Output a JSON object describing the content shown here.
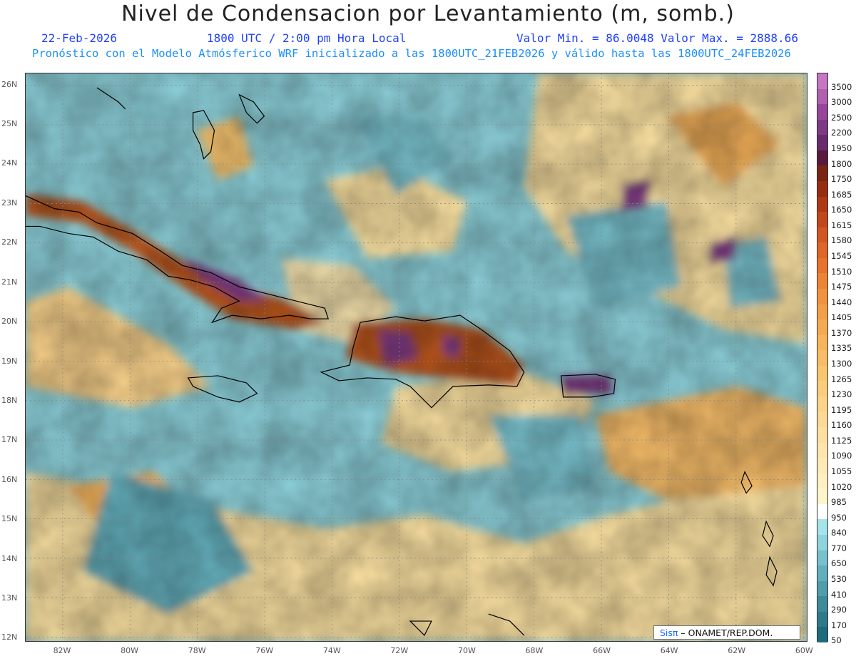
{
  "header": {
    "title": "Nivel de Condensacion por Levantamiento (m, somb.)",
    "date": "22-Feb-2026",
    "time": "1800 UTC / 2:00 pm Hora Local",
    "minmax": "Valor Min. = 86.0048  Valor Max. = 2888.66",
    "forecast": "Pronóstico con el Modelo Atmósferico WRF inicializado a las 1800UTC_21FEB2026 y válido hasta las  1800UTC_24FEB2026"
  },
  "axes": {
    "lat_labels": [
      "26N",
      "25N",
      "24N",
      "23N",
      "22N",
      "21N",
      "20N",
      "19N",
      "18N",
      "17N",
      "16N",
      "15N",
      "14N",
      "13N",
      "12N"
    ],
    "lon_labels": [
      "82W",
      "80W",
      "78W",
      "76W",
      "74W",
      "72W",
      "70W",
      "68W",
      "66W",
      "64W",
      "62W",
      "60W"
    ]
  },
  "legend": {
    "levels": [
      "3500",
      "3000",
      "2500",
      "2200",
      "1950",
      "1800",
      "1750",
      "1685",
      "1650",
      "1615",
      "1580",
      "1545",
      "1510",
      "1475",
      "1440",
      "1405",
      "1370",
      "1335",
      "1300",
      "1265",
      "1230",
      "1195",
      "1160",
      "1125",
      "1090",
      "1055",
      "1020",
      "985",
      "950",
      "840",
      "770",
      "650",
      "530",
      "410",
      "290",
      "170",
      "50"
    ],
    "colors": [
      "#c776c4",
      "#b060ae",
      "#97479a",
      "#7e3a82",
      "#6a2b6e",
      "#5a1a3e",
      "#7a2414",
      "#962d10",
      "#ad3914",
      "#c2481c",
      "#d45622",
      "#e06528",
      "#e8722e",
      "#ec8436",
      "#f0923e",
      "#f39f48",
      "#f5aa52",
      "#f7b45c",
      "#f8bd66",
      "#f9c670",
      "#facd7c",
      "#fbd489",
      "#fcda95",
      "#fde0a1",
      "#fde5ac",
      "#feeab6",
      "#fef0c0",
      "#fef5cb",
      "#ffffff",
      "#a6e3ea",
      "#8fd3dd",
      "#78c0cc",
      "#63aebb",
      "#4f9cab",
      "#3d8a9b",
      "#2d7a8c",
      "#1f6b7e"
    ]
  },
  "credit": {
    "logo": "Sisπ",
    "text": " – ONAMET/REP.DOM."
  }
}
